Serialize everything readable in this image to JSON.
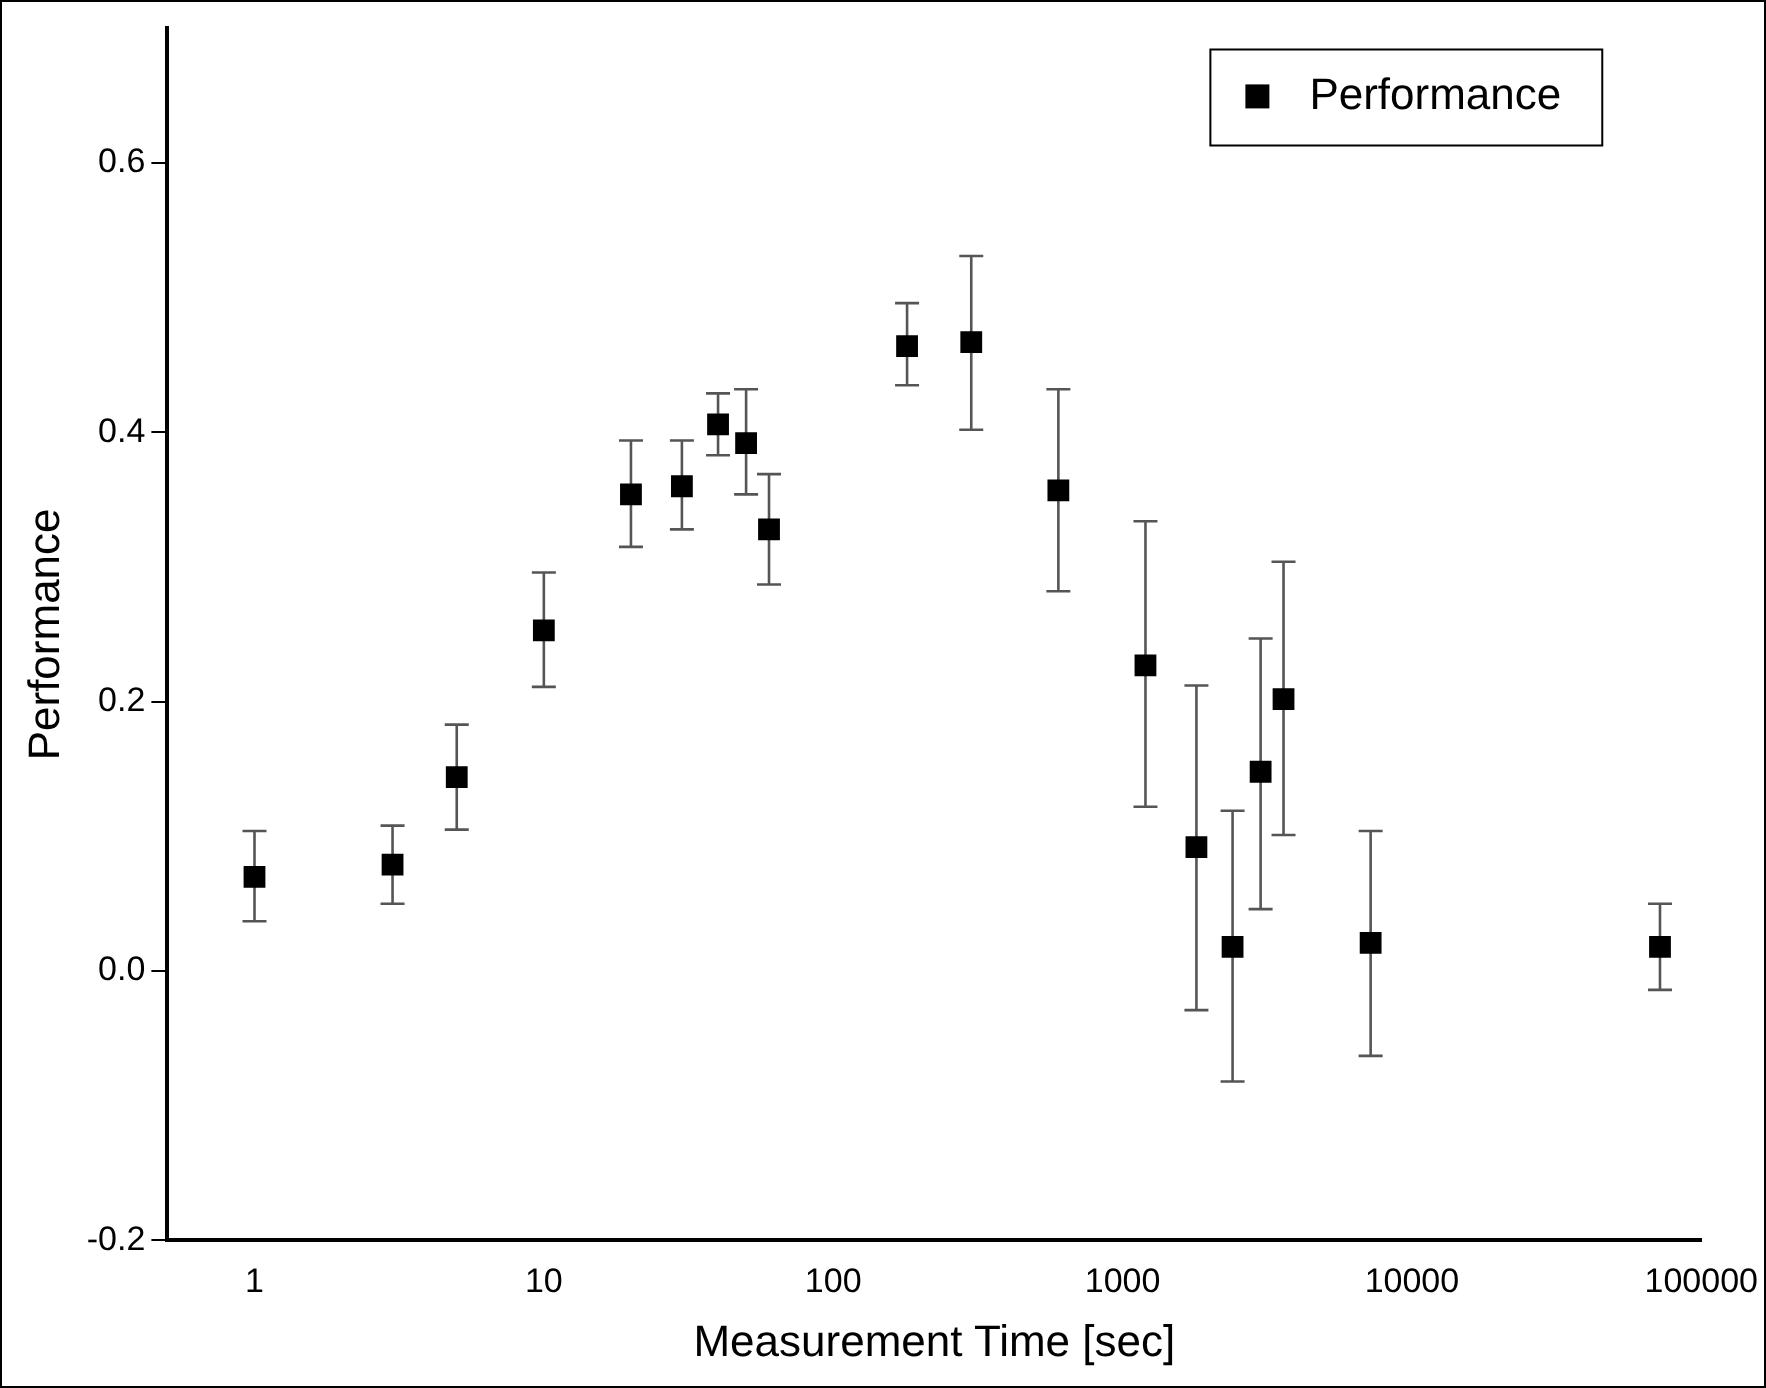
{
  "chart_data": {
    "type": "scatter",
    "xlabel": "Measurement Time [sec]",
    "ylabel": "Performance",
    "x": [
      1,
      3,
      5,
      10,
      20,
      30,
      40,
      50,
      60,
      180,
      300,
      600,
      1200,
      1800,
      2400,
      3000,
      3600,
      7200,
      72000
    ],
    "series": [
      {
        "name": "Performance",
        "color": "#000000",
        "values": [
          0.07,
          0.079,
          0.144,
          0.253,
          0.354,
          0.36,
          0.406,
          0.392,
          0.328,
          0.464,
          0.467,
          0.357,
          0.227,
          0.092,
          0.018,
          0.148,
          0.202,
          0.021,
          0.018
        ],
        "errors": [
          [
            0.037,
            0.104
          ],
          [
            0.05,
            0.108
          ],
          [
            0.105,
            0.183
          ],
          [
            0.211,
            0.296
          ],
          [
            0.315,
            0.394
          ],
          [
            0.328,
            0.394
          ],
          [
            0.383,
            0.429
          ],
          [
            0.354,
            0.432
          ],
          [
            0.287,
            0.369
          ],
          [
            0.435,
            0.496
          ],
          [
            0.402,
            0.531
          ],
          [
            0.282,
            0.432
          ],
          [
            0.122,
            0.334
          ],
          [
            -0.029,
            0.212
          ],
          [
            -0.082,
            0.119
          ],
          [
            0.046,
            0.247
          ],
          [
            0.101,
            0.304
          ],
          [
            -0.063,
            0.104
          ],
          [
            -0.014,
            0.05
          ]
        ]
      }
    ],
    "log": "x",
    "xlim": [
      0.5,
      100000
    ],
    "xticks": [
      1,
      10,
      100,
      1000,
      10000,
      100000
    ],
    "ylim": [
      -0.2,
      0.7
    ],
    "yticks": [
      {
        "value": -0.2,
        "label": "-0.2"
      },
      {
        "value": 0,
        "label": "0.0"
      },
      {
        "value": 0.2,
        "label": "0.2"
      },
      {
        "value": 0.4,
        "label": "0.4"
      },
      {
        "value": 0.6,
        "label": "0.6"
      }
    ],
    "marker": "square",
    "grid": false,
    "legend": "top right"
  }
}
